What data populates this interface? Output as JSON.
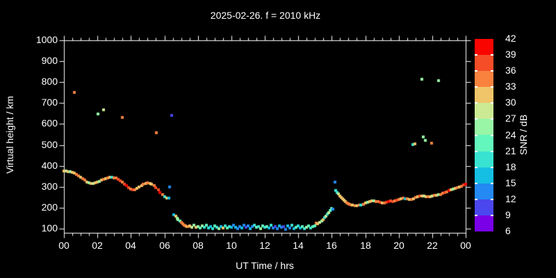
{
  "style": {
    "background": "#000000",
    "text_color": "#FFFFFF",
    "frame_color": "#FFFFFF"
  },
  "chart_data": {
    "type": "scatter",
    "title": "2025-02-26. f = 2010 kHz",
    "xlabel": "UT Time / hrs",
    "ylabel": "Virtual height / km",
    "xlim": [
      0,
      24
    ],
    "ylim": [
      80,
      1000
    ],
    "grid": false,
    "marker_size_px": 4,
    "xticks": {
      "hours": [
        0,
        2,
        4,
        6,
        8,
        10,
        12,
        14,
        16,
        18,
        20,
        22,
        24
      ],
      "labels": [
        "00",
        "02",
        "04",
        "06",
        "08",
        "10",
        "12",
        "14",
        "16",
        "18",
        "20",
        "22",
        "00"
      ],
      "minor_step_hours": 0.5
    },
    "yticks": {
      "values": [
        100,
        200,
        300,
        400,
        500,
        600,
        700,
        800,
        900,
        1000
      ],
      "labels": [
        "100",
        "200",
        "300",
        "400",
        "500",
        "600",
        "700",
        "800",
        "900",
        "1000"
      ]
    },
    "colorbar": {
      "label": "SNR / dB",
      "tick_values": [
        42,
        39,
        36,
        33,
        30,
        27,
        24,
        21,
        18,
        15,
        12,
        9,
        6
      ],
      "cell_colors_top_to_bottom": [
        "#FA0400",
        "#F44D28",
        "#F9823F",
        "#F0C468",
        "#CBEA93",
        "#98F6A6",
        "#63F7BD",
        "#38E3D2",
        "#14BFE3",
        "#2489F2",
        "#4A47EE",
        "#7A00E8"
      ]
    },
    "palette_by_snr_lower_bound": {
      "6": "#7A00E8",
      "9": "#4A47EE",
      "12": "#2489F2",
      "15": "#14BFE3",
      "18": "#38E3D2",
      "21": "#63F7BD",
      "24": "#98F6A6",
      "27": "#CBEA93",
      "30": "#F0C468",
      "33": "#F9823F",
      "36": "#F44D28",
      "39": "#FA0400"
    },
    "points_t_h_snr": [
      [
        0,
        375,
        30
      ],
      [
        0.13,
        376,
        27
      ],
      [
        0.25,
        373,
        30
      ],
      [
        0.38,
        371,
        24
      ],
      [
        0.5,
        368,
        30
      ],
      [
        0.63,
        364,
        30
      ],
      [
        0.75,
        358,
        33
      ],
      [
        0.88,
        352,
        33
      ],
      [
        1,
        345,
        30
      ],
      [
        1.13,
        338,
        33
      ],
      [
        1.25,
        331,
        33
      ],
      [
        1.38,
        324,
        30
      ],
      [
        1.5,
        318,
        24
      ],
      [
        1.63,
        316,
        30
      ],
      [
        1.75,
        317,
        27
      ],
      [
        1.88,
        320,
        30
      ],
      [
        2,
        323,
        30
      ],
      [
        2.13,
        327,
        24
      ],
      [
        2.25,
        331,
        30
      ],
      [
        2.38,
        336,
        33
      ],
      [
        2.5,
        340,
        30
      ],
      [
        2.63,
        343,
        33
      ],
      [
        2.75,
        345,
        30
      ],
      [
        2.88,
        346,
        18
      ],
      [
        3,
        344,
        33
      ],
      [
        3.13,
        341,
        33
      ],
      [
        3.25,
        336,
        36
      ],
      [
        3.38,
        330,
        36
      ],
      [
        3.5,
        323,
        33
      ],
      [
        3.63,
        314,
        36
      ],
      [
        3.75,
        305,
        39
      ],
      [
        3.88,
        296,
        36
      ],
      [
        4,
        290,
        33
      ],
      [
        4.13,
        286,
        36
      ],
      [
        4.25,
        287,
        33
      ],
      [
        4.38,
        291,
        30
      ],
      [
        4.5,
        298,
        30
      ],
      [
        4.63,
        306,
        30
      ],
      [
        4.75,
        313,
        33
      ],
      [
        4.88,
        317,
        30
      ],
      [
        5,
        319,
        33
      ],
      [
        5.13,
        317,
        30
      ],
      [
        5.25,
        313,
        30
      ],
      [
        5.38,
        306,
        33
      ],
      [
        5.5,
        297,
        36
      ],
      [
        5.63,
        286,
        36
      ],
      [
        5.75,
        274,
        39
      ],
      [
        5.88,
        262,
        33
      ],
      [
        6,
        252,
        18
      ],
      [
        6.13,
        247,
        30
      ],
      [
        6.25,
        245,
        15
      ],
      [
        6.58,
        168,
        15
      ],
      [
        6.67,
        159,
        30
      ],
      [
        6.75,
        151,
        24
      ],
      [
        6.83,
        143,
        24
      ],
      [
        6.92,
        136,
        21
      ],
      [
        7,
        129,
        33
      ],
      [
        7.08,
        123,
        33
      ],
      [
        7.17,
        118,
        33
      ],
      [
        7.25,
        114,
        33
      ],
      [
        7.33,
        111,
        30
      ],
      [
        7.42,
        110,
        33
      ],
      [
        7.5,
        112,
        30
      ],
      [
        7.63,
        108,
        27
      ],
      [
        7.75,
        115,
        24
      ],
      [
        7.88,
        105,
        30
      ],
      [
        8,
        110,
        24
      ],
      [
        8.13,
        103,
        21
      ],
      [
        8.25,
        113,
        24
      ],
      [
        8.38,
        107,
        18
      ],
      [
        8.5,
        116,
        21
      ],
      [
        8.63,
        104,
        18
      ],
      [
        8.75,
        109,
        15
      ],
      [
        8.88,
        101,
        18
      ],
      [
        9,
        112,
        21
      ],
      [
        9.13,
        106,
        18
      ],
      [
        9.25,
        99,
        24
      ],
      [
        9.38,
        111,
        15
      ],
      [
        9.5,
        104,
        30
      ],
      [
        9.63,
        114,
        18
      ],
      [
        9.75,
        102,
        21
      ],
      [
        9.88,
        109,
        18
      ],
      [
        10,
        105,
        15
      ],
      [
        10.13,
        115,
        12
      ],
      [
        10.25,
        108,
        15
      ],
      [
        10.38,
        100,
        12
      ],
      [
        10.5,
        111,
        12
      ],
      [
        10.63,
        104,
        15
      ],
      [
        10.75,
        117,
        12
      ],
      [
        10.88,
        107,
        9
      ],
      [
        11,
        112,
        12
      ],
      [
        11.13,
        101,
        15
      ],
      [
        11.25,
        109,
        12
      ],
      [
        11.38,
        116,
        18
      ],
      [
        11.5,
        105,
        21
      ],
      [
        11.63,
        110,
        18
      ],
      [
        11.75,
        99,
        24
      ],
      [
        11.88,
        113,
        21
      ],
      [
        12,
        106,
        18
      ],
      [
        12.13,
        111,
        21
      ],
      [
        12.25,
        102,
        15
      ],
      [
        12.38,
        117,
        18
      ],
      [
        12.5,
        104,
        12
      ],
      [
        12.63,
        109,
        9
      ],
      [
        12.75,
        100,
        12
      ],
      [
        12.88,
        114,
        15
      ],
      [
        13,
        105,
        12
      ],
      [
        13.13,
        110,
        9
      ],
      [
        13.25,
        98,
        12
      ],
      [
        13.38,
        112,
        15
      ],
      [
        13.5,
        103,
        12
      ],
      [
        13.63,
        115,
        18
      ],
      [
        13.75,
        101,
        15
      ],
      [
        13.88,
        108,
        21
      ],
      [
        14,
        113,
        18
      ],
      [
        14.13,
        104,
        15
      ],
      [
        14.25,
        110,
        21
      ],
      [
        14.38,
        100,
        18
      ],
      [
        14.5,
        107,
        24
      ],
      [
        14.63,
        112,
        21
      ],
      [
        14.75,
        103,
        18
      ],
      [
        14.88,
        109,
        21
      ],
      [
        15,
        114,
        21
      ],
      [
        15.07,
        127,
        33
      ],
      [
        15.17,
        124,
        30
      ],
      [
        15.29,
        130,
        27
      ],
      [
        15.42,
        136,
        24
      ],
      [
        15.5,
        143,
        30
      ],
      [
        15.58,
        153,
        18
      ],
      [
        15.67,
        161,
        27
      ],
      [
        15.75,
        170,
        18
      ],
      [
        15.83,
        177,
        27
      ],
      [
        15.92,
        186,
        21
      ],
      [
        16,
        196,
        21
      ],
      [
        16.08,
        193,
        12
      ],
      [
        16.25,
        283,
        18
      ],
      [
        16.33,
        273,
        18
      ],
      [
        16.42,
        266,
        27
      ],
      [
        16.5,
        257,
        30
      ],
      [
        16.58,
        250,
        30
      ],
      [
        16.67,
        243,
        30
      ],
      [
        16.75,
        236,
        30
      ],
      [
        16.83,
        230,
        30
      ],
      [
        16.92,
        224,
        33
      ],
      [
        17,
        220,
        33
      ],
      [
        17.08,
        216,
        33
      ],
      [
        17.17,
        213,
        33
      ],
      [
        17.25,
        212,
        30
      ],
      [
        17.38,
        210,
        33
      ],
      [
        17.5,
        211,
        30
      ],
      [
        17.63,
        212,
        33
      ],
      [
        17.75,
        213,
        18
      ],
      [
        17.88,
        217,
        33
      ],
      [
        18,
        222,
        30
      ],
      [
        18.13,
        227,
        24
      ],
      [
        18.25,
        231,
        30
      ],
      [
        18.38,
        233,
        30
      ],
      [
        18.5,
        232,
        24
      ],
      [
        18.63,
        231,
        33
      ],
      [
        18.75,
        229,
        33
      ],
      [
        18.88,
        225,
        36
      ],
      [
        19,
        222,
        30
      ],
      [
        19.13,
        224,
        33
      ],
      [
        19.25,
        227,
        36
      ],
      [
        19.38,
        231,
        39
      ],
      [
        19.5,
        232,
        36
      ],
      [
        19.63,
        230,
        36
      ],
      [
        19.75,
        234,
        33
      ],
      [
        19.88,
        237,
        36
      ],
      [
        20,
        239,
        33
      ],
      [
        20.13,
        243,
        30
      ],
      [
        20.25,
        246,
        33
      ],
      [
        20.38,
        244,
        15
      ],
      [
        20.5,
        243,
        33
      ],
      [
        20.63,
        240,
        30
      ],
      [
        20.75,
        241,
        33
      ],
      [
        20.88,
        243,
        30
      ],
      [
        21,
        248,
        33
      ],
      [
        21.13,
        252,
        30
      ],
      [
        21.25,
        255,
        36
      ],
      [
        21.38,
        257,
        30
      ],
      [
        21.5,
        256,
        27
      ],
      [
        21.63,
        254,
        30
      ],
      [
        21.75,
        252,
        33
      ],
      [
        21.88,
        253,
        30
      ],
      [
        22,
        256,
        27
      ],
      [
        22.13,
        259,
        33
      ],
      [
        22.25,
        261,
        30
      ],
      [
        22.38,
        262,
        24
      ],
      [
        22.5,
        264,
        33
      ],
      [
        22.63,
        268,
        33
      ],
      [
        22.75,
        272,
        36
      ],
      [
        22.88,
        277,
        33
      ],
      [
        23,
        281,
        39
      ],
      [
        23.13,
        285,
        30
      ],
      [
        23.25,
        288,
        24
      ],
      [
        23.38,
        291,
        30
      ],
      [
        23.5,
        295,
        33
      ],
      [
        23.63,
        300,
        30
      ],
      [
        23.75,
        304,
        33
      ],
      [
        23.88,
        308,
        36
      ],
      [
        24,
        312,
        39
      ]
    ],
    "outliers_t_h_snr": [
      [
        0.62,
        750,
        33
      ],
      [
        2.03,
        649,
        24
      ],
      [
        2.37,
        669,
        27
      ],
      [
        3.49,
        631,
        33
      ],
      [
        5.52,
        558,
        33
      ],
      [
        6.31,
        299,
        12
      ],
      [
        6.42,
        642,
        9
      ],
      [
        16.2,
        322,
        12
      ],
      [
        20.85,
        502,
        18
      ],
      [
        20.97,
        504,
        30
      ],
      [
        21.4,
        814,
        24
      ],
      [
        21.48,
        538,
        24
      ],
      [
        21.6,
        522,
        24
      ],
      [
        21.98,
        508,
        33
      ],
      [
        22.4,
        807,
        24
      ]
    ]
  }
}
